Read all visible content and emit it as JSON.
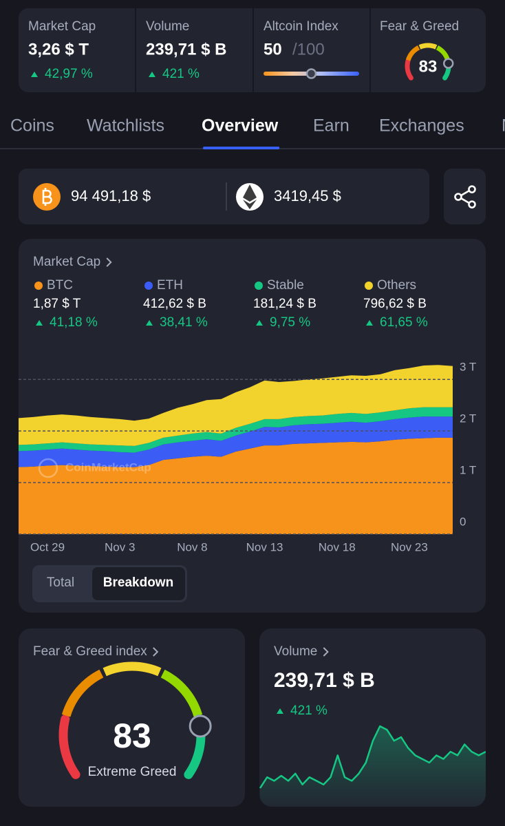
{
  "header_stats": [
    {
      "label": "Market Cap",
      "value": "3,26 $ T",
      "change": "42,97 %"
    },
    {
      "label": "Volume",
      "value": "239,71 $ B",
      "change": "421 %"
    },
    {
      "label": "Altcoin Index",
      "value": 50,
      "max": {
        "value": 100,
        "label": "/100"
      }
    },
    {
      "label": "Fear & Greed",
      "value": 83,
      "lim": [
        0,
        100
      ]
    }
  ],
  "tabs": [
    "Coins",
    "Watchlists",
    "Overview",
    "Earn",
    "Exchanges",
    "N"
  ],
  "active_tab": 2,
  "prices": [
    {
      "price": "94 491,18 $"
    },
    {
      "price": "3419,45 $"
    }
  ],
  "chart_data": [
    {
      "type": "stacked_area",
      "title": "Market Cap",
      "categories": [
        null,
        null,
        "Oct 29",
        null,
        null,
        null,
        null,
        "Nov 3",
        null,
        null,
        null,
        null,
        "Nov 8",
        null,
        null,
        null,
        null,
        "Nov 13",
        null,
        null,
        null,
        null,
        "Nov 18",
        null,
        null,
        null,
        null,
        "Nov 23",
        null,
        null,
        null
      ],
      "series": [
        {
          "name": "BTC",
          "color": "#f7931a",
          "current_label": "1,87 $ T",
          "change": "41,18 %",
          "values": [
            1.3,
            1.31,
            1.33,
            1.34,
            1.33,
            1.32,
            1.31,
            1.3,
            1.3,
            1.34,
            1.44,
            1.47,
            1.5,
            1.52,
            1.5,
            1.6,
            1.66,
            1.72,
            1.72,
            1.75,
            1.76,
            1.77,
            1.78,
            1.79,
            1.78,
            1.8,
            1.83,
            1.85,
            1.86,
            1.87,
            1.87
          ]
        },
        {
          "name": "ETH",
          "color": "#3b5cf5",
          "current_label": "412,62 $ B",
          "change": "38,41 %",
          "values": [
            0.31,
            0.31,
            0.31,
            0.32,
            0.31,
            0.3,
            0.3,
            0.29,
            0.28,
            0.3,
            0.3,
            0.31,
            0.31,
            0.32,
            0.31,
            0.31,
            0.33,
            0.36,
            0.35,
            0.36,
            0.37,
            0.37,
            0.38,
            0.39,
            0.38,
            0.39,
            0.4,
            0.41,
            0.42,
            0.41,
            0.41
          ]
        },
        {
          "name": "Stable",
          "color": "#16c784",
          "current_label": "181,24 $ B",
          "change": "9,75 %",
          "values": [
            0.12,
            0.12,
            0.12,
            0.12,
            0.12,
            0.12,
            0.12,
            0.13,
            0.13,
            0.13,
            0.13,
            0.13,
            0.14,
            0.14,
            0.14,
            0.15,
            0.15,
            0.15,
            0.16,
            0.16,
            0.16,
            0.16,
            0.17,
            0.17,
            0.17,
            0.17,
            0.17,
            0.18,
            0.18,
            0.18,
            0.18
          ]
        },
        {
          "name": "Others",
          "color": "#f2d22c",
          "current_label": "796,62 $ B",
          "change": "61,65 %",
          "values": [
            0.52,
            0.53,
            0.54,
            0.54,
            0.54,
            0.53,
            0.52,
            0.51,
            0.49,
            0.47,
            0.48,
            0.54,
            0.57,
            0.62,
            0.67,
            0.69,
            0.71,
            0.75,
            0.72,
            0.7,
            0.71,
            0.72,
            0.72,
            0.73,
            0.74,
            0.74,
            0.78,
            0.78,
            0.81,
            0.82,
            0.8
          ]
        }
      ],
      "ylim": [
        0,
        3.35
      ],
      "yticks": [
        0,
        {
          "value": 1,
          "label": "1 T"
        },
        {
          "value": 2,
          "label": "2 T"
        },
        {
          "value": 3,
          "label": "3 T"
        }
      ],
      "grid": true,
      "watermark": "CoinMarketCap",
      "toggle": [
        "Total",
        "Breakdown"
      ],
      "active_toggle": 1
    },
    {
      "type": "line",
      "title": "Volume",
      "value_label": "239,71 $ B",
      "change": "421 %",
      "color": "#16c784",
      "values": [
        5,
        20,
        15,
        22,
        15,
        25,
        10,
        20,
        15,
        10,
        20,
        50,
        20,
        15,
        25,
        40,
        70,
        90,
        85,
        70,
        75,
        60,
        50,
        45,
        40,
        50,
        45,
        55,
        50,
        65,
        55,
        50,
        55
      ]
    }
  ],
  "fear_greed": {
    "title": "Fear & Greed index",
    "value": 83,
    "label": "Extreme Greed",
    "lim": [
      0,
      100
    ]
  }
}
